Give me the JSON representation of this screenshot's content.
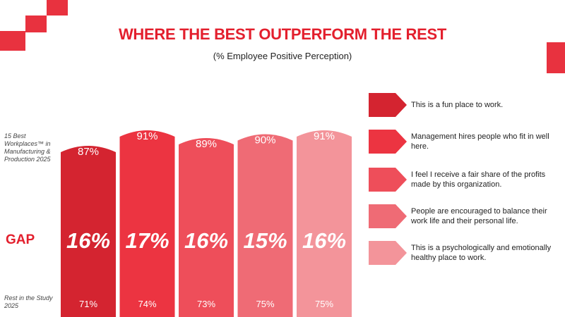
{
  "title": "WHERE THE BEST OUTPERFORM THE REST",
  "subtitle": "(% Employee Positive Perception)",
  "labels": {
    "best": "15 Best Workplaces™ in Manufacturing & Production 2025",
    "gap": "GAP",
    "rest": "Rest in the Study 2025"
  },
  "colors": {
    "accent": "#e31f2d",
    "series": [
      "#d42430",
      "#ec3441",
      "#ee4e5a",
      "#ef6b75",
      "#f3949a"
    ]
  },
  "chart_data": {
    "type": "bar",
    "categories": [
      "This is a fun place to work.",
      "Management hires people who fit in well here.",
      "I feel I receive a fair share of the profits made by this organization.",
      "People are encouraged to balance their work life and their personal life.",
      "This is a psychologically and emotionally healthy place to work."
    ],
    "series": [
      {
        "name": "15 Best Workplaces™ in Manufacturing & Production 2025",
        "values": [
          87,
          91,
          89,
          90,
          91
        ]
      },
      {
        "name": "Rest in the Study 2025",
        "values": [
          71,
          74,
          73,
          75,
          75
        ]
      }
    ],
    "data_labels_best": [
      "87%",
      "91%",
      "89%",
      "90%",
      "91%"
    ],
    "data_labels_rest": [
      "71%",
      "74%",
      "73%",
      "75%",
      "75%"
    ],
    "gap_labels": [
      "16%",
      "17%",
      "16%",
      "15%",
      "16%"
    ],
    "gap_values": [
      16,
      17,
      16,
      15,
      16
    ],
    "title": "WHERE THE BEST OUTPERFORM THE REST",
    "ylabel": "",
    "legend_position": "right"
  }
}
